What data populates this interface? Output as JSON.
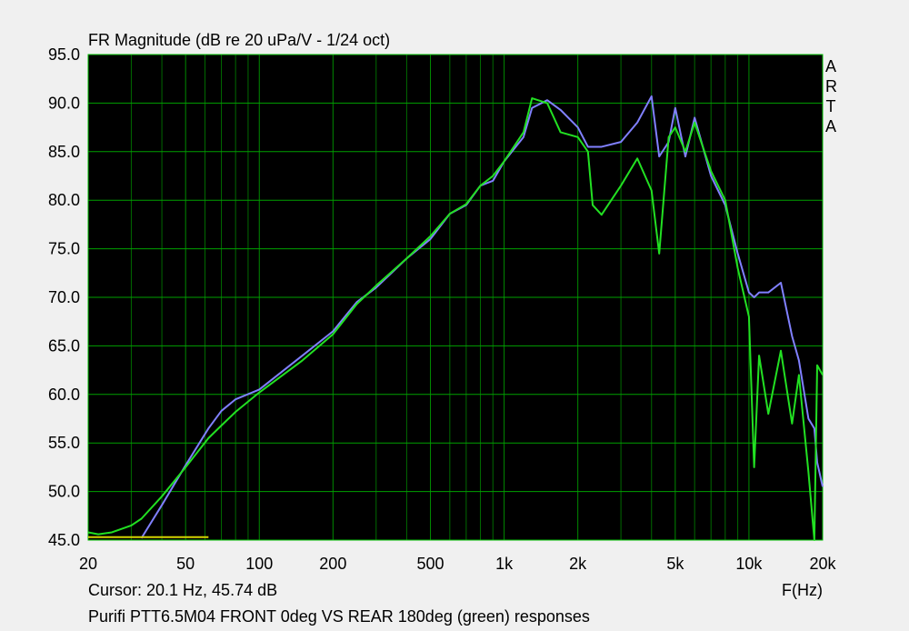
{
  "chart_data": {
    "type": "line",
    "title": "FR Magnitude (dB re 20 uPa/V - 1/24 oct)",
    "cursor_text": "Cursor: 20.1 Hz, 45.74 dB",
    "x_label": "F(Hz)",
    "caption": "Purifi PTT6.5M04 FRONT 0deg VS REAR 180deg (green) responses",
    "brand": "ARTA",
    "x_log": true,
    "grid": true,
    "xlim": [
      20,
      20000
    ],
    "ylim": [
      45,
      95
    ],
    "xticks": [
      20,
      50,
      100,
      200,
      500,
      {
        "value": 1000,
        "label": "1k"
      },
      {
        "value": 2000,
        "label": "2k"
      },
      {
        "value": 5000,
        "label": "5k"
      },
      {
        "value": 10000,
        "label": "10k"
      },
      {
        "value": 20000,
        "label": "20k"
      }
    ],
    "x_minor_grid": [
      30,
      40,
      60,
      70,
      80,
      90,
      300,
      400,
      600,
      700,
      800,
      900,
      3000,
      4000,
      6000,
      7000,
      8000,
      9000
    ],
    "yticks": [
      {
        "value": 45,
        "label": "45.0"
      },
      {
        "value": 50,
        "label": "50.0"
      },
      {
        "value": 55,
        "label": "55.0"
      },
      {
        "value": 60,
        "label": "60.0"
      },
      {
        "value": 65,
        "label": "65.0"
      },
      {
        "value": 70,
        "label": "70.0"
      },
      {
        "value": 75,
        "label": "75.0"
      },
      {
        "value": 80,
        "label": "80.0"
      },
      {
        "value": 85,
        "label": "85.0"
      },
      {
        "value": 90,
        "label": "90.0"
      },
      {
        "value": 95,
        "label": "95.0"
      }
    ],
    "x": [
      20,
      22,
      25,
      30,
      33,
      40,
      50,
      62,
      70,
      80,
      100,
      150,
      200,
      250,
      300,
      400,
      500,
      600,
      700,
      800,
      900,
      1000,
      1200,
      1300,
      1500,
      1700,
      2000,
      2200,
      2300,
      2500,
      3000,
      3500,
      4000,
      4300,
      4700,
      5000,
      5500,
      6000,
      7000,
      8000,
      9000,
      10000,
      10500,
      11000,
      12000,
      13500,
      15000,
      16000,
      17500,
      18500,
      19000,
      20000
    ],
    "series": [
      {
        "color": "#8080ff",
        "values": [
          null,
          null,
          null,
          null,
          45.2,
          48.6,
          52.7,
          56.5,
          58.3,
          59.5,
          60.5,
          64,
          66.5,
          69.5,
          71,
          74,
          76,
          78.6,
          79.5,
          81.5,
          82,
          84,
          86.5,
          89.5,
          90.3,
          89.3,
          87.5,
          85.5,
          85.5,
          85.5,
          86,
          88,
          90.7,
          84.5,
          86,
          89.5,
          84.5,
          88.5,
          82.5,
          79.5,
          74.5,
          70.5,
          70,
          70.5,
          70.5,
          71.5,
          66,
          63.5,
          57.5,
          56.5,
          53,
          50.5
        ]
      },
      {
        "color": "#22e022",
        "values": [
          45.8,
          45.6,
          45.8,
          46.5,
          47.2,
          49.5,
          52.5,
          55.5,
          56.8,
          58.2,
          60.2,
          63.5,
          66.2,
          69.3,
          71.2,
          74,
          76.3,
          78.6,
          79.6,
          81.5,
          82.5,
          84,
          87,
          90.5,
          90,
          87,
          86.5,
          85,
          79.5,
          78.5,
          81.5,
          84.3,
          81,
          74.5,
          86.5,
          87.5,
          85,
          88,
          83,
          80,
          73,
          68,
          52.5,
          64,
          58,
          64.5,
          57,
          62,
          52,
          45,
          63,
          62
        ]
      },
      {
        "color": "#d4d400",
        "values": [
          45.3,
          45.3,
          45.3,
          45.3,
          45.3,
          45.3,
          45.3,
          45.3,
          null,
          null,
          null,
          null,
          null,
          null,
          null,
          null,
          null,
          null,
          null,
          null,
          null,
          null,
          null,
          null,
          null,
          null,
          null,
          null,
          null,
          null,
          null,
          null,
          null,
          null,
          null,
          null,
          null,
          null,
          null,
          null,
          null,
          null,
          null,
          null,
          null,
          null,
          null,
          null,
          null,
          null,
          null,
          null
        ]
      }
    ]
  }
}
